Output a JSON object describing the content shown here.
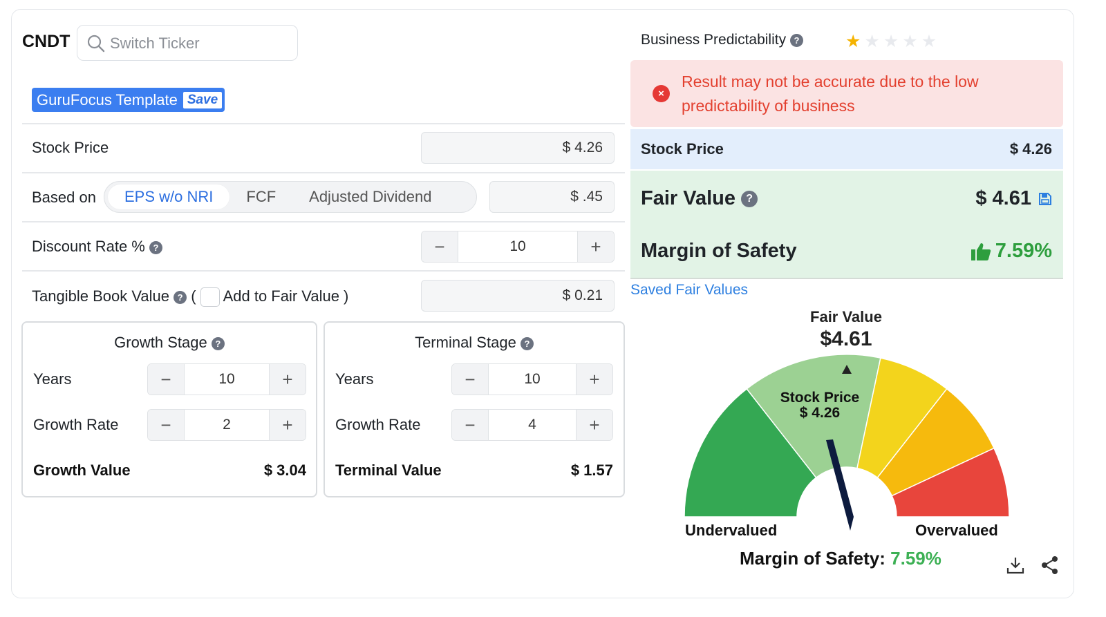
{
  "header": {
    "ticker": "CNDT",
    "search_placeholder": "Switch Ticker",
    "template_label": "GuruFocus Template",
    "template_save": "Save"
  },
  "inputs": {
    "stock_price_label": "Stock Price",
    "stock_price_value": "$ 4.26",
    "based_on_label": "Based on",
    "based_on_options": [
      "EPS w/o NRI",
      "FCF",
      "Adjusted Dividend"
    ],
    "based_on_selected": "EPS w/o NRI",
    "based_on_value": "$ .45",
    "discount_rate_label": "Discount Rate %",
    "discount_rate_value": "10",
    "tbv_label": "Tangible Book Value",
    "tbv_open": "(",
    "tbv_add_label": "Add to Fair Value )",
    "tbv_value": "$ 0.21"
  },
  "growth_stage": {
    "title": "Growth Stage",
    "years_label": "Years",
    "years_value": "10",
    "rate_label": "Growth Rate",
    "rate_value": "2",
    "value_label": "Growth Value",
    "value": "$ 3.04"
  },
  "terminal_stage": {
    "title": "Terminal Stage",
    "years_label": "Years",
    "years_value": "10",
    "rate_label": "Growth Rate",
    "rate_value": "4",
    "value_label": "Terminal Value",
    "value": "$ 1.57"
  },
  "right": {
    "predictability_label": "Business Predictability",
    "predictability_stars": 1,
    "alert_text": "Result may not be accurate due to the low predictability of business",
    "stock_price_label": "Stock Price",
    "stock_price_value": "$ 4.26",
    "fair_value_label": "Fair Value",
    "fair_value": "$ 4.61",
    "mos_label": "Margin of Safety",
    "mos_value": "7.59%",
    "saved_link": "Saved Fair Values"
  },
  "gauge": {
    "fair_value_title": "Fair Value",
    "fair_value": "$4.61",
    "stock_price_title": "Stock Price",
    "stock_price": "$ 4.26",
    "left_label": "Undervalued",
    "right_label": "Overvalued",
    "mos_label": "Margin of Safety:",
    "mos_value": "7.59%",
    "colors": [
      "#34a853",
      "#9cd193",
      "#f3d41c",
      "#f6ba0d",
      "#e8453c"
    ]
  },
  "footer": {
    "icons": [
      "download-icon",
      "share-icon"
    ]
  }
}
